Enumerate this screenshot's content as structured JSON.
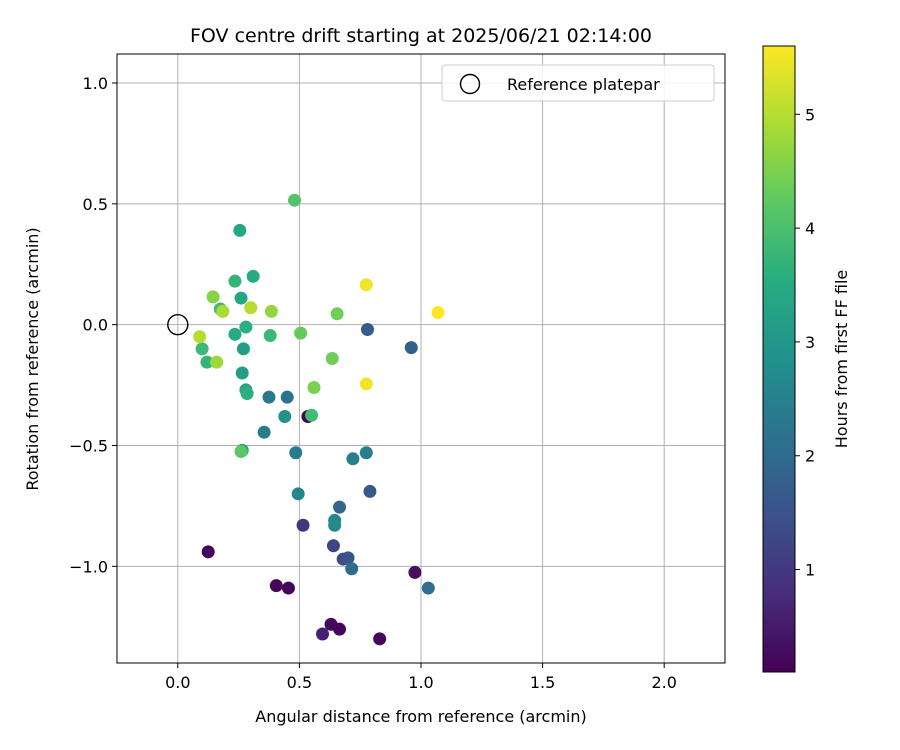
{
  "chart_data": {
    "type": "scatter",
    "title": "FOV centre drift starting at 2025/06/21 02:14:00",
    "xlabel": "Angular distance from reference (arcmin)",
    "ylabel": "Rotation from reference (arcmin)",
    "xlim": [
      -0.25,
      2.25
    ],
    "ylim": [
      -1.4,
      1.12
    ],
    "xticks": [
      0.0,
      0.5,
      1.0,
      1.5,
      2.0
    ],
    "yticks": [
      -1.0,
      -0.5,
      0.0,
      0.5,
      1.0
    ],
    "xtick_labels": [
      "0.0",
      "0.5",
      "1.0",
      "1.5",
      "2.0"
    ],
    "ytick_labels": [
      "−1.0",
      "−0.5",
      "0.0",
      "0.5",
      "1.0"
    ],
    "grid": true,
    "legend": {
      "position": "top-right",
      "entries": [
        "Reference platepar"
      ]
    },
    "reference_point": {
      "x": 0.0,
      "y": 0.0
    },
    "colorbar": {
      "label": "Hours from first FF file",
      "colormap": "viridis",
      "range": [
        0.1,
        5.6
      ],
      "ticks": [
        1,
        2,
        3,
        4,
        5
      ],
      "tick_labels": [
        "1",
        "2",
        "3",
        "4",
        "5"
      ]
    },
    "series": [
      {
        "points": [
          {
            "x": 0.125,
            "y": -0.94,
            "h": 0.2
          },
          {
            "x": 0.405,
            "y": -1.08,
            "h": 0.2
          },
          {
            "x": 0.455,
            "y": -1.09,
            "h": 0.2
          },
          {
            "x": 0.535,
            "y": -0.38,
            "h": 0.2
          },
          {
            "x": 0.63,
            "y": -1.24,
            "h": 0.2
          },
          {
            "x": 0.665,
            "y": -1.26,
            "h": 0.2
          },
          {
            "x": 0.83,
            "y": -1.3,
            "h": 0.2
          },
          {
            "x": 0.975,
            "y": -1.025,
            "h": 0.3
          },
          {
            "x": 0.595,
            "y": -1.28,
            "h": 0.6
          },
          {
            "x": 0.515,
            "y": -0.83,
            "h": 1.0
          },
          {
            "x": 0.64,
            "y": -0.915,
            "h": 1.2
          },
          {
            "x": 0.68,
            "y": -0.97,
            "h": 1.3
          },
          {
            "x": 0.7,
            "y": -0.965,
            "h": 1.5
          },
          {
            "x": 0.79,
            "y": -0.69,
            "h": 1.6
          },
          {
            "x": 0.78,
            "y": -0.02,
            "h": 1.7
          },
          {
            "x": 0.96,
            "y": -0.095,
            "h": 1.8
          },
          {
            "x": 0.665,
            "y": -0.755,
            "h": 1.9
          },
          {
            "x": 0.715,
            "y": -1.01,
            "h": 2.0
          },
          {
            "x": 1.03,
            "y": -1.09,
            "h": 2.1
          },
          {
            "x": 0.45,
            "y": -0.3,
            "h": 2.2
          },
          {
            "x": 0.375,
            "y": -0.3,
            "h": 2.3
          },
          {
            "x": 0.355,
            "y": -0.445,
            "h": 2.4
          },
          {
            "x": 0.485,
            "y": -0.53,
            "h": 2.4
          },
          {
            "x": 0.775,
            "y": -0.53,
            "h": 2.4
          },
          {
            "x": 0.72,
            "y": -0.555,
            "h": 2.5
          },
          {
            "x": 0.495,
            "y": -0.7,
            "h": 2.6
          },
          {
            "x": 0.645,
            "y": -0.81,
            "h": 2.6
          },
          {
            "x": 0.645,
            "y": -0.83,
            "h": 2.7
          },
          {
            "x": 0.44,
            "y": -0.38,
            "h": 2.9
          },
          {
            "x": 0.265,
            "y": -0.52,
            "h": 3.0
          },
          {
            "x": 0.27,
            "y": -0.1,
            "h": 3.2
          },
          {
            "x": 0.265,
            "y": -0.2,
            "h": 3.2
          },
          {
            "x": 0.28,
            "y": -0.27,
            "h": 3.3
          },
          {
            "x": 0.255,
            "y": 0.39,
            "h": 3.4
          },
          {
            "x": 0.26,
            "y": 0.11,
            "h": 3.4
          },
          {
            "x": 0.31,
            "y": 0.2,
            "h": 3.5
          },
          {
            "x": 0.235,
            "y": -0.04,
            "h": 3.5
          },
          {
            "x": 0.28,
            "y": -0.01,
            "h": 3.6
          },
          {
            "x": 0.285,
            "y": -0.285,
            "h": 3.6
          },
          {
            "x": 0.235,
            "y": 0.18,
            "h": 3.7
          },
          {
            "x": 0.12,
            "y": -0.155,
            "h": 3.7
          },
          {
            "x": 0.1,
            "y": -0.1,
            "h": 3.8
          },
          {
            "x": 0.38,
            "y": -0.045,
            "h": 3.8
          },
          {
            "x": 0.175,
            "y": 0.065,
            "h": 3.9
          },
          {
            "x": 0.55,
            "y": -0.375,
            "h": 3.9
          },
          {
            "x": 0.48,
            "y": 0.515,
            "h": 4.1
          },
          {
            "x": 0.26,
            "y": -0.525,
            "h": 4.2
          },
          {
            "x": 0.505,
            "y": -0.035,
            "h": 4.3
          },
          {
            "x": 0.655,
            "y": 0.045,
            "h": 4.4
          },
          {
            "x": 0.635,
            "y": -0.14,
            "h": 4.4
          },
          {
            "x": 0.56,
            "y": -0.26,
            "h": 4.5
          },
          {
            "x": 0.145,
            "y": 0.115,
            "h": 4.6
          },
          {
            "x": 0.385,
            "y": 0.055,
            "h": 4.7
          },
          {
            "x": 0.16,
            "y": -0.155,
            "h": 4.8
          },
          {
            "x": 0.185,
            "y": 0.055,
            "h": 4.9
          },
          {
            "x": 0.3,
            "y": 0.07,
            "h": 5.0
          },
          {
            "x": 0.09,
            "y": -0.05,
            "h": 5.0
          },
          {
            "x": 0.775,
            "y": 0.165,
            "h": 5.5
          },
          {
            "x": 0.775,
            "y": -0.245,
            "h": 5.5
          },
          {
            "x": 1.07,
            "y": 0.05,
            "h": 5.6
          }
        ]
      }
    ]
  }
}
